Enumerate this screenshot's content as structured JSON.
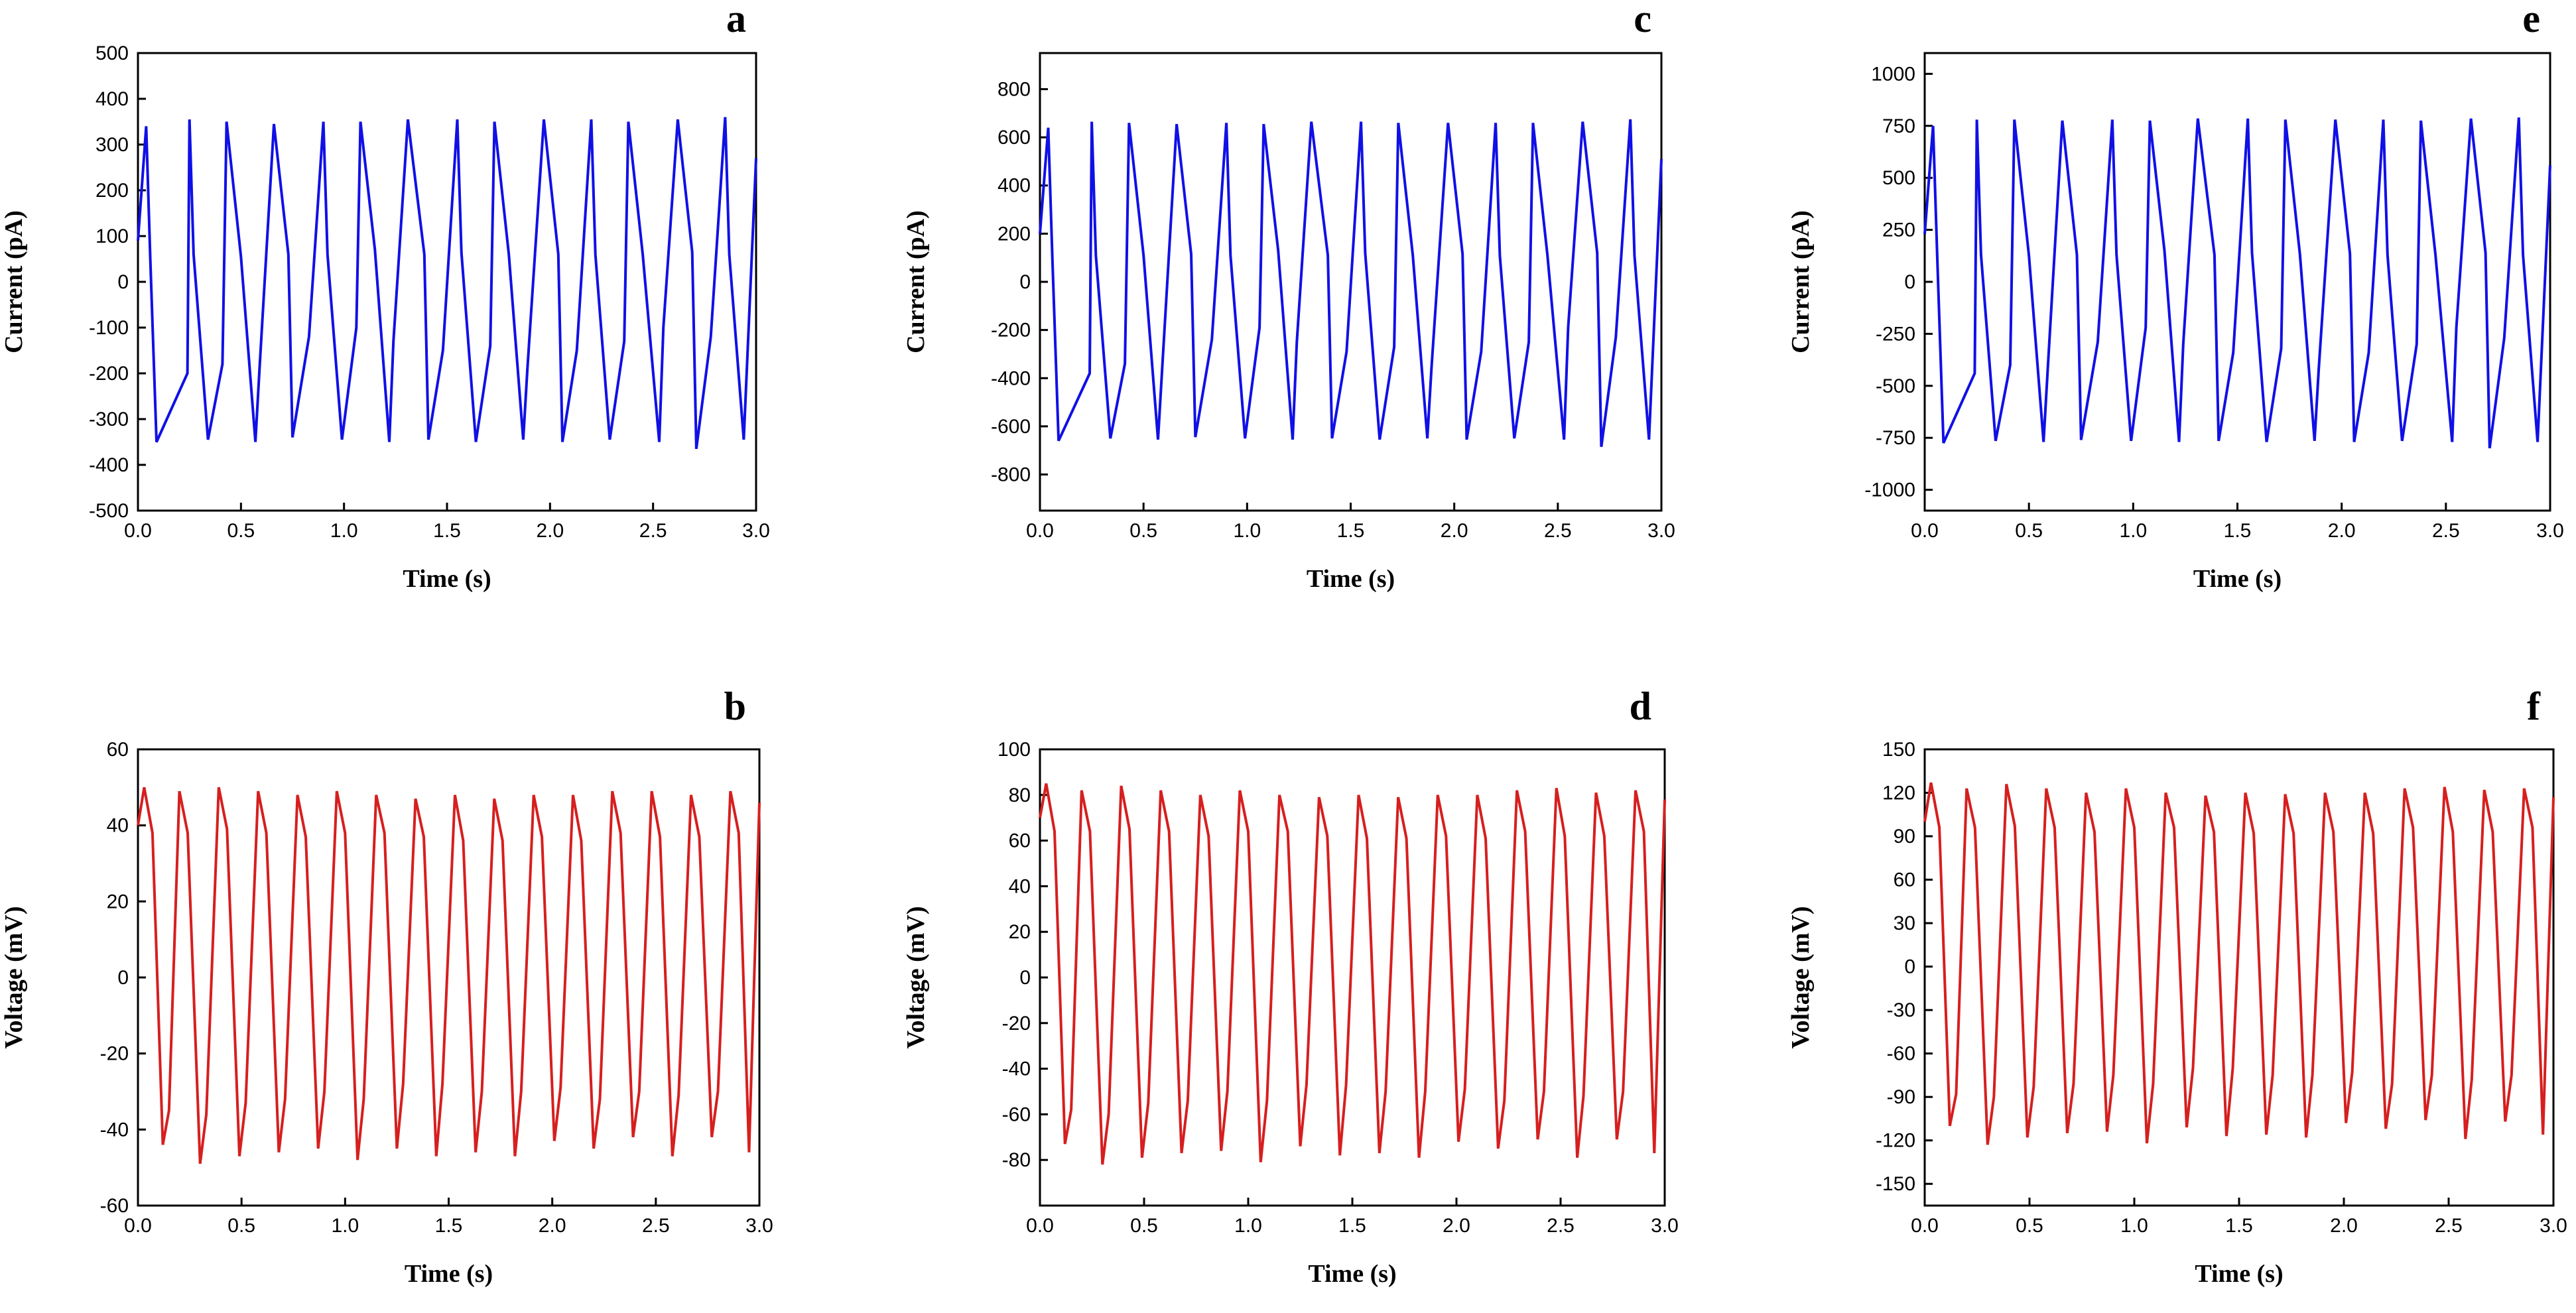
{
  "figure": {
    "colors": {
      "current": "#1010e6",
      "voltage": "#d61f1f",
      "axis": "#000000"
    }
  },
  "chart_data": [
    {
      "type": "line",
      "panel": "a",
      "signal": "current",
      "xlabel": "Time (s)",
      "ylabel": "Current  (pA)",
      "xlim": [
        0,
        3.0
      ],
      "ylim": [
        -500,
        500
      ],
      "x_ticks": [
        0.0,
        0.5,
        1.0,
        1.5,
        2.0,
        2.5,
        3.0
      ],
      "x_tick_labels": [
        "0.0",
        "0.5",
        "1.0",
        "1.5",
        "2.0",
        "2.5",
        "3.0"
      ],
      "y_ticks": [
        500,
        400,
        300,
        200,
        100,
        0,
        -100,
        -200,
        -300,
        -400,
        -500
      ],
      "y_tick_labels": [
        "500",
        "400",
        "300",
        "200",
        "100",
        "0",
        "-100",
        "-200",
        "-300",
        "-400",
        "-500"
      ],
      "series": [
        {
          "name": "current",
          "x": [
            0.0,
            0.04,
            0.06,
            0.09,
            0.24,
            0.25,
            0.27,
            0.34,
            0.41,
            0.43,
            0.5,
            0.57,
            0.59,
            0.66,
            0.73,
            0.75,
            0.83,
            0.9,
            0.92,
            0.99,
            1.06,
            1.08,
            1.15,
            1.22,
            1.24,
            1.31,
            1.39,
            1.41,
            1.48,
            1.55,
            1.57,
            1.64,
            1.71,
            1.73,
            1.8,
            1.87,
            1.89,
            1.97,
            2.04,
            2.06,
            2.13,
            2.2,
            2.22,
            2.29,
            2.36,
            2.38,
            2.45,
            2.53,
            2.55,
            2.62,
            2.69,
            2.71,
            2.78,
            2.85,
            2.87,
            2.94,
            3.0
          ],
          "values": [
            90,
            340,
            50,
            -350,
            -200,
            355,
            60,
            -345,
            -180,
            350,
            55,
            -350,
            -190,
            345,
            60,
            -340,
            -120,
            350,
            60,
            -345,
            -100,
            350,
            70,
            -350,
            -130,
            355,
            60,
            -345,
            -150,
            355,
            65,
            -350,
            -140,
            350,
            60,
            -345,
            -190,
            355,
            60,
            -350,
            -150,
            355,
            60,
            -345,
            -130,
            350,
            60,
            -350,
            -100,
            355,
            65,
            -365,
            -120,
            360,
            60,
            -345,
            270
          ]
        }
      ]
    },
    {
      "type": "line",
      "panel": "c",
      "signal": "current",
      "xlabel": "Time (s)",
      "ylabel": "Current  (pA)",
      "xlim": [
        0,
        3.0
      ],
      "ylim": [
        -950,
        950
      ],
      "x_ticks": [
        0.0,
        0.5,
        1.0,
        1.5,
        2.0,
        2.5,
        3.0
      ],
      "x_tick_labels": [
        "0.0",
        "0.5",
        "1.0",
        "1.5",
        "2.0",
        "2.5",
        "3.0"
      ],
      "y_ticks": [
        800,
        600,
        400,
        200,
        0,
        -200,
        -400,
        -600,
        -800
      ],
      "y_tick_labels": [
        "800",
        "600",
        "400",
        "200",
        "0",
        "-200",
        "-400",
        "-600",
        "-800"
      ],
      "series": [
        {
          "name": "current",
          "x": [
            0.0,
            0.04,
            0.06,
            0.09,
            0.24,
            0.25,
            0.27,
            0.34,
            0.41,
            0.43,
            0.5,
            0.57,
            0.59,
            0.66,
            0.73,
            0.75,
            0.83,
            0.9,
            0.92,
            0.99,
            1.06,
            1.08,
            1.15,
            1.22,
            1.24,
            1.31,
            1.39,
            1.41,
            1.48,
            1.55,
            1.57,
            1.64,
            1.71,
            1.73,
            1.8,
            1.87,
            1.89,
            1.97,
            2.04,
            2.06,
            2.13,
            2.2,
            2.22,
            2.29,
            2.36,
            2.38,
            2.45,
            2.53,
            2.55,
            2.62,
            2.69,
            2.71,
            2.78,
            2.85,
            2.87,
            2.94,
            3.0
          ],
          "values": [
            200,
            640,
            100,
            -660,
            -380,
            665,
            110,
            -650,
            -340,
            660,
            110,
            -655,
            -360,
            655,
            115,
            -645,
            -240,
            660,
            110,
            -650,
            -190,
            655,
            130,
            -655,
            -250,
            665,
            110,
            -650,
            -290,
            665,
            120,
            -655,
            -270,
            660,
            110,
            -650,
            -360,
            660,
            115,
            -655,
            -290,
            660,
            110,
            -650,
            -250,
            660,
            110,
            -655,
            -190,
            665,
            120,
            -685,
            -230,
            675,
            110,
            -655,
            510
          ]
        }
      ]
    },
    {
      "type": "line",
      "panel": "e",
      "signal": "current",
      "xlabel": "Time (s)",
      "ylabel": "Current  (pA)",
      "xlim": [
        0,
        3.0
      ],
      "ylim": [
        -1100,
        1100
      ],
      "x_ticks": [
        0.0,
        0.5,
        1.0,
        1.5,
        2.0,
        2.5,
        3.0
      ],
      "x_tick_labels": [
        "0.0",
        "0.5",
        "1.0",
        "1.5",
        "2.0",
        "2.5",
        "3.0"
      ],
      "y_ticks": [
        1000,
        750,
        500,
        250,
        0,
        -250,
        -500,
        -750,
        -1000
      ],
      "y_tick_labels": [
        "1000",
        "750",
        "500",
        "250",
        "0",
        "-250",
        "-500",
        "-750",
        "-1000"
      ],
      "series": [
        {
          "name": "current",
          "x": [
            0.0,
            0.04,
            0.06,
            0.09,
            0.24,
            0.25,
            0.27,
            0.34,
            0.41,
            0.43,
            0.5,
            0.57,
            0.59,
            0.66,
            0.73,
            0.75,
            0.83,
            0.9,
            0.92,
            0.99,
            1.06,
            1.08,
            1.15,
            1.22,
            1.24,
            1.31,
            1.39,
            1.41,
            1.48,
            1.55,
            1.57,
            1.64,
            1.71,
            1.73,
            1.8,
            1.87,
            1.89,
            1.97,
            2.04,
            2.06,
            2.13,
            2.2,
            2.22,
            2.29,
            2.36,
            2.38,
            2.45,
            2.53,
            2.55,
            2.62,
            2.69,
            2.71,
            2.78,
            2.85,
            2.87,
            2.94,
            3.0
          ],
          "values": [
            230,
            750,
            120,
            -775,
            -440,
            780,
            130,
            -765,
            -400,
            780,
            125,
            -770,
            -420,
            775,
            130,
            -760,
            -290,
            780,
            130,
            -765,
            -220,
            775,
            150,
            -770,
            -300,
            785,
            130,
            -765,
            -340,
            785,
            140,
            -770,
            -320,
            780,
            130,
            -765,
            -420,
            780,
            135,
            -770,
            -340,
            780,
            130,
            -765,
            -300,
            775,
            130,
            -770,
            -220,
            785,
            140,
            -800,
            -270,
            790,
            130,
            -770,
            560
          ]
        }
      ]
    },
    {
      "type": "line",
      "panel": "b",
      "signal": "voltage",
      "xlabel": "Time (s)",
      "ylabel": "Voltage  (mV)",
      "xlim": [
        0,
        3.0
      ],
      "ylim": [
        -60,
        60
      ],
      "x_ticks": [
        0.0,
        0.5,
        1.0,
        1.5,
        2.0,
        2.5,
        3.0
      ],
      "x_tick_labels": [
        "0.0",
        "0.5",
        "1.0",
        "1.5",
        "2.0",
        "2.5",
        "3.0"
      ],
      "y_ticks": [
        60,
        40,
        20,
        0,
        -20,
        -40,
        -60
      ],
      "y_tick_labels": [
        "60",
        "40",
        "20",
        "0",
        "-20",
        "-40",
        "-60"
      ],
      "series": [
        {
          "name": "voltage",
          "x": [
            0.0,
            0.03,
            0.07,
            0.12,
            0.15,
            0.2,
            0.24,
            0.3,
            0.33,
            0.39,
            0.43,
            0.49,
            0.52,
            0.58,
            0.62,
            0.68,
            0.71,
            0.77,
            0.81,
            0.87,
            0.9,
            0.96,
            1.0,
            1.06,
            1.09,
            1.15,
            1.19,
            1.25,
            1.28,
            1.34,
            1.38,
            1.44,
            1.47,
            1.53,
            1.57,
            1.63,
            1.66,
            1.72,
            1.76,
            1.82,
            1.85,
            1.91,
            1.95,
            2.01,
            2.04,
            2.1,
            2.14,
            2.2,
            2.23,
            2.29,
            2.33,
            2.39,
            2.42,
            2.48,
            2.52,
            2.58,
            2.61,
            2.67,
            2.71,
            2.77,
            2.8,
            2.86,
            2.9,
            2.95,
            3.0
          ],
          "values": [
            40,
            50,
            38,
            -44,
            -35,
            49,
            38,
            -49,
            -36,
            50,
            39,
            -47,
            -33,
            49,
            38,
            -46,
            -32,
            48,
            37,
            -45,
            -30,
            49,
            38,
            -48,
            -32,
            48,
            38,
            -45,
            -28,
            47,
            37,
            -47,
            -28,
            48,
            36,
            -46,
            -30,
            47,
            36,
            -47,
            -30,
            48,
            37,
            -43,
            -29,
            48,
            36,
            -45,
            -32,
            49,
            38,
            -42,
            -30,
            49,
            37,
            -47,
            -31,
            48,
            37,
            -42,
            -30,
            49,
            38,
            -46,
            46
          ]
        }
      ]
    },
    {
      "type": "line",
      "panel": "d",
      "signal": "voltage",
      "xlabel": "Time (s)",
      "ylabel": "Voltage  (mV)",
      "xlim": [
        0,
        3.0
      ],
      "ylim": [
        -100,
        100
      ],
      "x_ticks": [
        0.0,
        0.5,
        1.0,
        1.5,
        2.0,
        2.5,
        3.0
      ],
      "x_tick_labels": [
        "0.0",
        "0.5",
        "1.0",
        "1.5",
        "2.0",
        "2.5",
        "3.0"
      ],
      "y_ticks": [
        100,
        80,
        60,
        40,
        20,
        0,
        -20,
        -40,
        -60,
        -80
      ],
      "y_tick_labels": [
        "100",
        "80",
        "60",
        "40",
        "20",
        "0",
        "-20",
        "-40",
        "-60",
        "-80"
      ],
      "series": [
        {
          "name": "voltage",
          "x": [
            0.0,
            0.03,
            0.07,
            0.12,
            0.15,
            0.2,
            0.24,
            0.3,
            0.33,
            0.39,
            0.43,
            0.49,
            0.52,
            0.58,
            0.62,
            0.68,
            0.71,
            0.77,
            0.81,
            0.87,
            0.9,
            0.96,
            1.0,
            1.06,
            1.09,
            1.15,
            1.19,
            1.25,
            1.28,
            1.34,
            1.38,
            1.44,
            1.47,
            1.53,
            1.57,
            1.63,
            1.66,
            1.72,
            1.76,
            1.82,
            1.85,
            1.91,
            1.95,
            2.01,
            2.04,
            2.1,
            2.14,
            2.2,
            2.23,
            2.29,
            2.33,
            2.39,
            2.42,
            2.48,
            2.52,
            2.58,
            2.61,
            2.67,
            2.71,
            2.77,
            2.8,
            2.86,
            2.9,
            2.95,
            3.0
          ],
          "values": [
            70,
            85,
            64,
            -73,
            -58,
            82,
            64,
            -82,
            -60,
            84,
            65,
            -79,
            -55,
            82,
            64,
            -77,
            -54,
            80,
            62,
            -76,
            -50,
            82,
            64,
            -81,
            -54,
            80,
            64,
            -74,
            -47,
            79,
            62,
            -78,
            -47,
            80,
            61,
            -77,
            -50,
            79,
            61,
            -79,
            -50,
            80,
            62,
            -72,
            -49,
            80,
            61,
            -75,
            -54,
            82,
            64,
            -71,
            -50,
            83,
            62,
            -79,
            -52,
            81,
            62,
            -71,
            -50,
            82,
            64,
            -77,
            78
          ]
        }
      ]
    },
    {
      "type": "line",
      "panel": "f",
      "signal": "voltage",
      "xlabel": "Time (s)",
      "ylabel": "Voltage  (mV)",
      "xlim": [
        0,
        3.0
      ],
      "ylim": [
        -165,
        150
      ],
      "x_ticks": [
        0.0,
        0.5,
        1.0,
        1.5,
        2.0,
        2.5,
        3.0
      ],
      "x_tick_labels": [
        "0.0",
        "0.5",
        "1.0",
        "1.5",
        "2.0",
        "2.5",
        "3.0"
      ],
      "y_ticks": [
        150,
        120,
        90,
        60,
        30,
        0,
        -30,
        -60,
        -90,
        -120,
        -150
      ],
      "y_tick_labels": [
        "150",
        "120",
        "90",
        "60",
        "30",
        "0",
        "-30",
        "-60",
        "-90",
        "-120",
        "-150"
      ],
      "series": [
        {
          "name": "voltage",
          "x": [
            0.0,
            0.03,
            0.07,
            0.12,
            0.15,
            0.2,
            0.24,
            0.3,
            0.33,
            0.39,
            0.43,
            0.49,
            0.52,
            0.58,
            0.62,
            0.68,
            0.71,
            0.77,
            0.81,
            0.87,
            0.9,
            0.96,
            1.0,
            1.06,
            1.09,
            1.15,
            1.19,
            1.25,
            1.28,
            1.34,
            1.38,
            1.44,
            1.47,
            1.53,
            1.57,
            1.63,
            1.66,
            1.72,
            1.76,
            1.82,
            1.85,
            1.91,
            1.95,
            2.01,
            2.04,
            2.1,
            2.14,
            2.2,
            2.23,
            2.29,
            2.33,
            2.39,
            2.42,
            2.48,
            2.52,
            2.58,
            2.61,
            2.67,
            2.71,
            2.77,
            2.8,
            2.86,
            2.9,
            2.95,
            3.0
          ],
          "values": [
            100,
            127,
            96,
            -110,
            -88,
            123,
            96,
            -123,
            -90,
            126,
            97,
            -118,
            -83,
            123,
            96,
            -115,
            -81,
            120,
            93,
            -114,
            -75,
            123,
            96,
            -122,
            -81,
            120,
            96,
            -111,
            -70,
            118,
            93,
            -117,
            -70,
            120,
            92,
            -116,
            -75,
            119,
            92,
            -118,
            -75,
            120,
            93,
            -108,
            -73,
            120,
            92,
            -112,
            -81,
            123,
            96,
            -106,
            -75,
            124,
            93,
            -119,
            -78,
            122,
            93,
            -107,
            -75,
            123,
            96,
            -116,
            117
          ]
        }
      ]
    }
  ]
}
